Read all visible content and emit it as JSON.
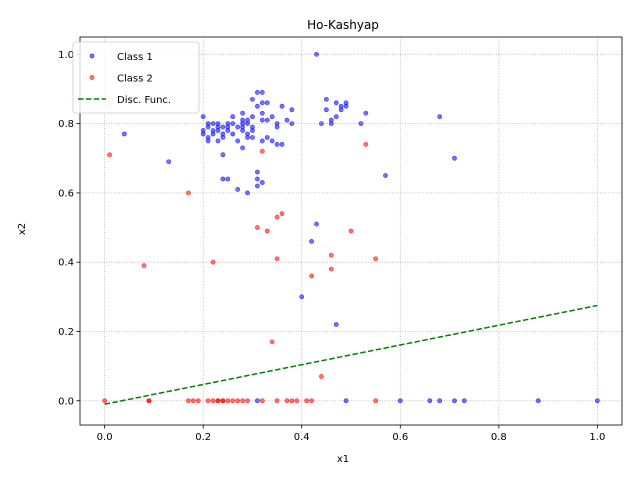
{
  "chart_data": {
    "type": "scatter",
    "title": "Ho-Kashyap",
    "xlabel": "x1",
    "ylabel": "x2",
    "xlim": [
      -0.05,
      1.05
    ],
    "ylim": [
      -0.07,
      1.05
    ],
    "xticks": [
      0.0,
      0.2,
      0.4,
      0.6,
      0.8,
      1.0
    ],
    "yticks": [
      0.0,
      0.2,
      0.4,
      0.6,
      0.8,
      1.0
    ],
    "xtick_labels": [
      "0.0",
      "0.2",
      "0.4",
      "0.6",
      "0.8",
      "1.0"
    ],
    "ytick_labels": [
      "0.0",
      "0.2",
      "0.4",
      "0.6",
      "0.8",
      "1.0"
    ],
    "grid": true,
    "legend_position": "top-left",
    "series": [
      {
        "name": "Class 1",
        "kind": "points",
        "color": "#0000ff",
        "points": [
          [
            0.04,
            0.77
          ],
          [
            0.13,
            0.69
          ],
          [
            0.2,
            0.82
          ],
          [
            0.2,
            0.78
          ],
          [
            0.2,
            0.77
          ],
          [
            0.21,
            0.79
          ],
          [
            0.21,
            0.76
          ],
          [
            0.21,
            0.8
          ],
          [
            0.21,
            0.75
          ],
          [
            0.22,
            0.78
          ],
          [
            0.22,
            0.77
          ],
          [
            0.22,
            0.8
          ],
          [
            0.23,
            0.79
          ],
          [
            0.23,
            0.78
          ],
          [
            0.23,
            0.75
          ],
          [
            0.23,
            0.8
          ],
          [
            0.24,
            0.77
          ],
          [
            0.24,
            0.79
          ],
          [
            0.24,
            0.71
          ],
          [
            0.24,
            0.64
          ],
          [
            0.24,
            0.76
          ],
          [
            0.25,
            0.78
          ],
          [
            0.25,
            0.8
          ],
          [
            0.25,
            0.79
          ],
          [
            0.25,
            0.64
          ],
          [
            0.26,
            0.77
          ],
          [
            0.26,
            0.8
          ],
          [
            0.26,
            0.82
          ],
          [
            0.27,
            0.79
          ],
          [
            0.27,
            0.75
          ],
          [
            0.27,
            0.61
          ],
          [
            0.28,
            0.8
          ],
          [
            0.28,
            0.79
          ],
          [
            0.28,
            0.81
          ],
          [
            0.28,
            0.83
          ],
          [
            0.28,
            0.78
          ],
          [
            0.28,
            0.73
          ],
          [
            0.29,
            0.8
          ],
          [
            0.29,
            0.77
          ],
          [
            0.29,
            0.81
          ],
          [
            0.29,
            0.6
          ],
          [
            0.29,
            0.76
          ],
          [
            0.3,
            0.79
          ],
          [
            0.3,
            0.82
          ],
          [
            0.3,
            0.78
          ],
          [
            0.3,
            0.87
          ],
          [
            0.3,
            0.76
          ],
          [
            0.31,
            0.89
          ],
          [
            0.31,
            0.85
          ],
          [
            0.31,
            0.66
          ],
          [
            0.31,
            0.62
          ],
          [
            0.31,
            0.64
          ],
          [
            0.32,
            0.81
          ],
          [
            0.32,
            0.83
          ],
          [
            0.32,
            0.75
          ],
          [
            0.32,
            0.63
          ],
          [
            0.32,
            0.86
          ],
          [
            0.32,
            0.89
          ],
          [
            0.33,
            0.81
          ],
          [
            0.33,
            0.86
          ],
          [
            0.33,
            0.76
          ],
          [
            0.34,
            0.75
          ],
          [
            0.34,
            0.82
          ],
          [
            0.35,
            0.8
          ],
          [
            0.35,
            0.74
          ],
          [
            0.35,
            0.79
          ],
          [
            0.36,
            0.74
          ],
          [
            0.36,
            0.85
          ],
          [
            0.37,
            0.81
          ],
          [
            0.38,
            0.8
          ],
          [
            0.38,
            0.84
          ],
          [
            0.4,
            0.3
          ],
          [
            0.42,
            0.46
          ],
          [
            0.43,
            0.51
          ],
          [
            0.43,
            1.0
          ],
          [
            0.44,
            0.8
          ],
          [
            0.45,
            0.87
          ],
          [
            0.45,
            0.84
          ],
          [
            0.46,
            0.8
          ],
          [
            0.46,
            0.81
          ],
          [
            0.47,
            0.86
          ],
          [
            0.47,
            0.82
          ],
          [
            0.47,
            0.22
          ],
          [
            0.48,
            0.85
          ],
          [
            0.48,
            0.84
          ],
          [
            0.49,
            0.86
          ],
          [
            0.49,
            0.85
          ],
          [
            0.52,
            0.8
          ],
          [
            0.53,
            0.83
          ],
          [
            0.57,
            0.65
          ],
          [
            0.68,
            0.82
          ],
          [
            0.71,
            0.7
          ],
          [
            0.31,
            0.0
          ],
          [
            0.49,
            0.0
          ],
          [
            0.6,
            0.0
          ],
          [
            0.66,
            0.0
          ],
          [
            0.68,
            0.0
          ],
          [
            0.71,
            0.0
          ],
          [
            0.73,
            0.0
          ],
          [
            0.88,
            0.0
          ],
          [
            1.0,
            0.0
          ]
        ]
      },
      {
        "name": "Class 2",
        "kind": "points",
        "color": "#ff0000",
        "points": [
          [
            0.0,
            0.0
          ],
          [
            0.01,
            0.71
          ],
          [
            0.08,
            0.39
          ],
          [
            0.09,
            0.0
          ],
          [
            0.09,
            0.0
          ],
          [
            0.17,
            0.6
          ],
          [
            0.17,
            0.0
          ],
          [
            0.18,
            0.0
          ],
          [
            0.19,
            0.0
          ],
          [
            0.21,
            0.0
          ],
          [
            0.22,
            0.4
          ],
          [
            0.22,
            0.0
          ],
          [
            0.23,
            0.0
          ],
          [
            0.23,
            0.0
          ],
          [
            0.24,
            0.0
          ],
          [
            0.24,
            0.0
          ],
          [
            0.25,
            0.0
          ],
          [
            0.26,
            0.0
          ],
          [
            0.27,
            0.0
          ],
          [
            0.28,
            0.0
          ],
          [
            0.29,
            0.0
          ],
          [
            0.31,
            0.5
          ],
          [
            0.32,
            0.0
          ],
          [
            0.32,
            0.72
          ],
          [
            0.33,
            0.49
          ],
          [
            0.34,
            0.17
          ],
          [
            0.35,
            0.53
          ],
          [
            0.35,
            0.41
          ],
          [
            0.35,
            0.0
          ],
          [
            0.36,
            0.54
          ],
          [
            0.37,
            0.0
          ],
          [
            0.38,
            0.0
          ],
          [
            0.39,
            0.0
          ],
          [
            0.41,
            0.0
          ],
          [
            0.42,
            0.36
          ],
          [
            0.42,
            0.0
          ],
          [
            0.44,
            0.07
          ],
          [
            0.46,
            0.38
          ],
          [
            0.46,
            0.42
          ],
          [
            0.5,
            0.49
          ],
          [
            0.53,
            0.74
          ],
          [
            0.55,
            0.41
          ],
          [
            0.55,
            0.0
          ]
        ]
      },
      {
        "name": "Disc. Func.",
        "kind": "line",
        "color": "#008000",
        "points": [
          [
            0.0,
            -0.01
          ],
          [
            1.0,
            0.275
          ]
        ]
      }
    ]
  }
}
